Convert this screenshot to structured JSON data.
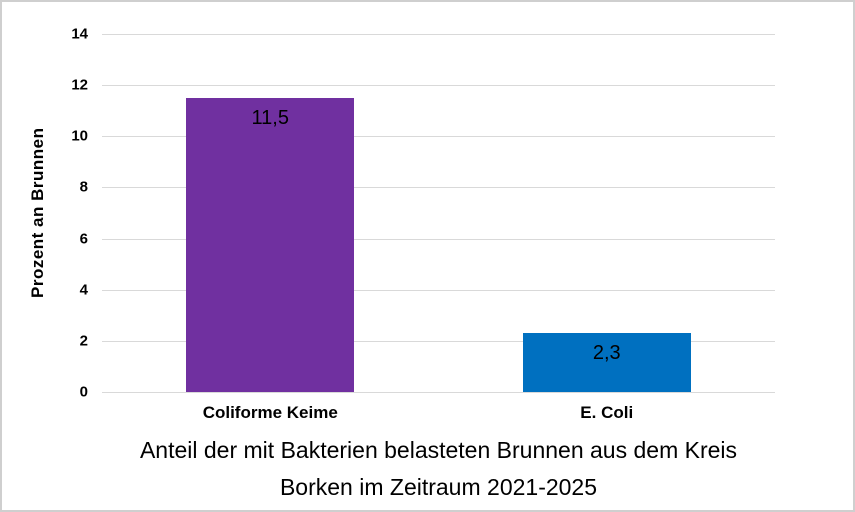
{
  "chart_data": {
    "type": "bar",
    "title": "Anteil der mit Bakterien belasteten Brunnen aus dem Kreis Borken im Zeitraum 2021-2025",
    "title_lines": [
      "Anteil der mit Bakterien belasteten Brunnen aus dem Kreis",
      "Borken im Zeitraum 2021-2025"
    ],
    "xlabel": "",
    "ylabel": "Prozent an Brunnen",
    "categories": [
      "Coliforme Keime",
      "E. Coli"
    ],
    "values": [
      11.5,
      2.3
    ],
    "value_labels": [
      "11,5",
      "2,3"
    ],
    "bar_colors": [
      "#7030A0",
      "#0070C0"
    ],
    "ylim": [
      0,
      14
    ],
    "yticks": [
      0,
      2,
      4,
      6,
      8,
      10,
      12,
      14
    ],
    "grid": "horizontal",
    "legend": "none"
  },
  "styles": {
    "gridline_color": "#d9d9d9",
    "border_color": "#cfcfcf",
    "background": "#ffffff",
    "text_color": "#000000"
  }
}
